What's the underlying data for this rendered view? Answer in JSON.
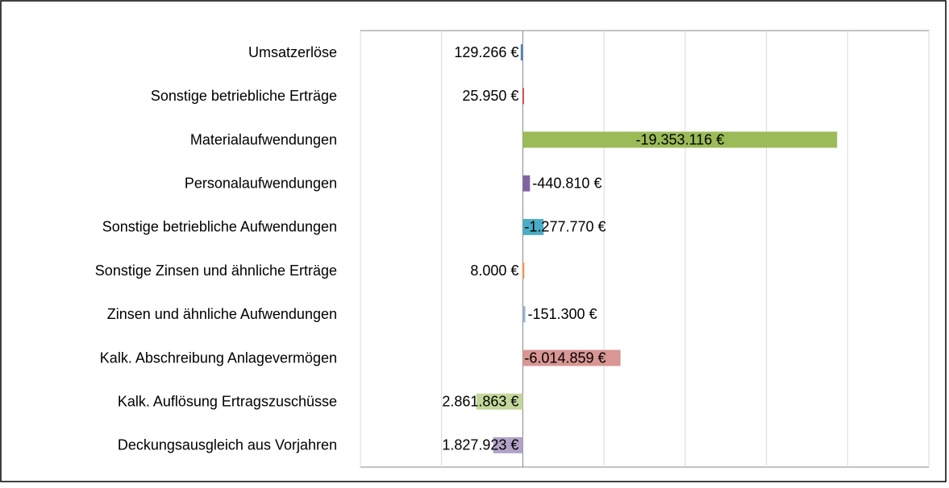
{
  "chart_data": {
    "type": "hbar",
    "categories": [
      "Umsatzerlöse",
      "Sonstige betriebliche Erträge",
      "Materialaufwendungen",
      "Personalaufwendungen",
      "Sonstige betriebliche Aufwendungen",
      "Sonstige Zinsen und ähnliche Erträge",
      "Zinsen und ähnliche Aufwendungen",
      "Kalk. Abschreibung Anlagevermögen",
      "Kalk. Auflösung Ertragszuschüsse",
      "Deckungsausgleich aus Vorjahren"
    ],
    "values": [
      129266,
      25950,
      -19353116,
      -440810,
      -1277770,
      8000,
      -151300,
      -6014859,
      2861863,
      1827923
    ],
    "value_labels": [
      "129.266 €",
      "25.950 €",
      "-19.353.116 €",
      "-440.810 €",
      "-1.277.770 €",
      "8.000 €",
      "-151.300 €",
      "-6.014.859 €",
      "2.861.863 €",
      "1.827.923 €"
    ],
    "colors": [
      "#4f81bd",
      "#c0504d",
      "#9bbb59",
      "#8064a2",
      "#4bacc6",
      "#f79646",
      "#95b3d7",
      "#d99694",
      "#c3d69b",
      "#b3a2c7"
    ],
    "xlim": [
      10000000,
      -25000000
    ],
    "xticks": [
      10000000,
      5000000,
      0,
      -5000000,
      -10000000,
      -15000000,
      -20000000,
      -25000000
    ],
    "grid": true
  }
}
